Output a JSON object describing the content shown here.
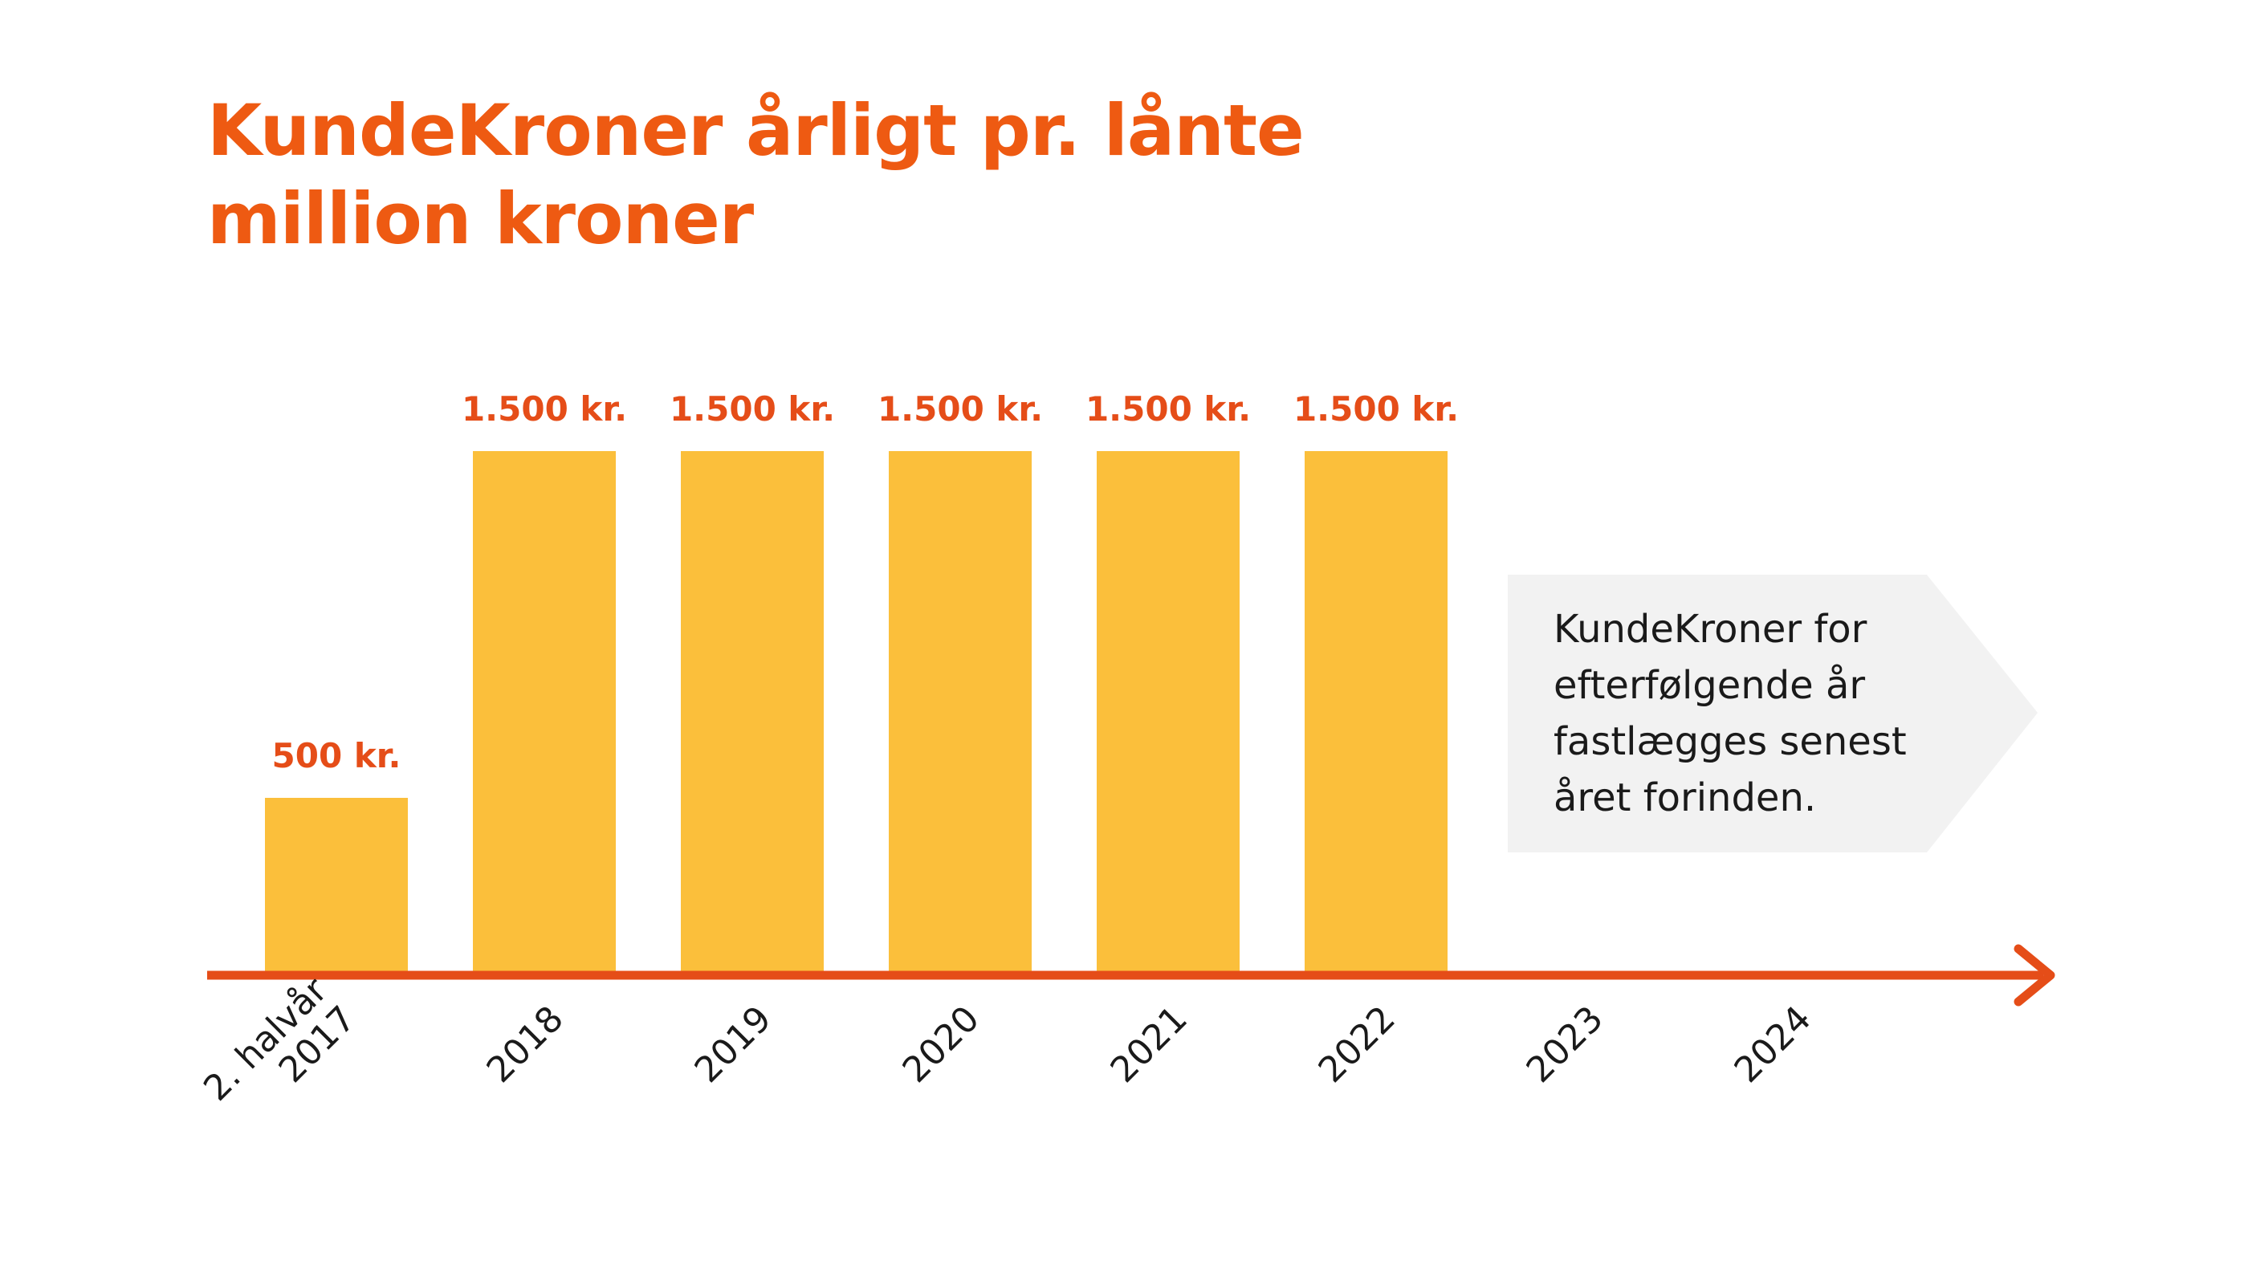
{
  "chart_data": {
    "type": "bar",
    "title": "KundeKroner årligt pr. lånte million kroner",
    "categories": [
      [
        "2. halvår",
        "2017"
      ],
      [
        "2018"
      ],
      [
        "2019"
      ],
      [
        "2020"
      ],
      [
        "2021"
      ],
      [
        "2022"
      ],
      [
        "2023"
      ],
      [
        "2024"
      ]
    ],
    "values": [
      500,
      1500,
      1500,
      1500,
      1500,
      1500,
      null,
      null
    ],
    "data_labels": [
      "500 kr.",
      "1.500 kr.",
      "1.500 kr.",
      "1.500 kr.",
      "1.500 kr.",
      "1.500 kr.",
      "",
      ""
    ],
    "unit": "kr.",
    "ylim": [
      0,
      1500
    ],
    "grid": false,
    "legend": "none",
    "y_axis_shown": false,
    "colors": {
      "bar": "#fbbf3b",
      "axis": "#e54d18",
      "value_label": "#e54d18",
      "title": "#ee5a12",
      "callout_background": "#f2f2f2",
      "text": "#1a1a1a"
    },
    "annotation": {
      "lines": [
        "KundeKroner for",
        "efterfølgende år",
        "fastlægges senest",
        "året forinden."
      ]
    }
  }
}
